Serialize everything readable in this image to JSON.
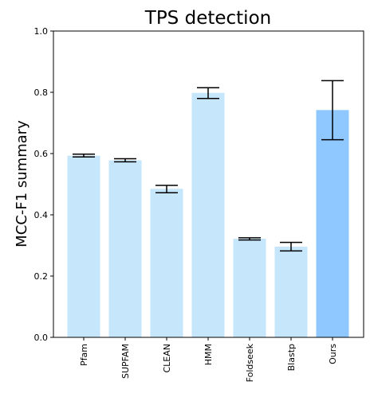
{
  "chart_data": {
    "type": "bar",
    "title": "TPS detection",
    "xlabel": "",
    "ylabel": "MCC-F1 summary",
    "ylim": [
      0,
      1.0
    ],
    "yticks": [
      "0.0",
      "0.2",
      "0.4",
      "0.6",
      "0.8",
      "1.0"
    ],
    "categories": [
      "Pfam",
      "SUPFAM",
      "CLEAN",
      "HMM",
      "Foldseek",
      "Blastp",
      "Ours"
    ],
    "values": [
      0.593,
      0.578,
      0.485,
      0.798,
      0.322,
      0.296,
      0.742
    ],
    "error_low": [
      0.589,
      0.573,
      0.472,
      0.78,
      0.318,
      0.282,
      0.645
    ],
    "error_high": [
      0.598,
      0.583,
      0.496,
      0.815,
      0.325,
      0.31,
      0.838
    ],
    "grid": false,
    "colors": {
      "baseline_bar": "#c5e6fb",
      "highlight_bar": "#8fc7ff",
      "error_bar": "#000000",
      "axis": "#000000"
    },
    "highlight_index": 6
  }
}
